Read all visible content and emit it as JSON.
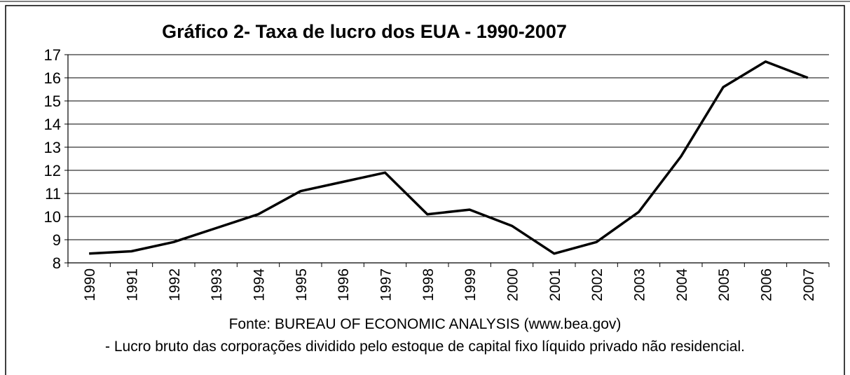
{
  "chart_data": {
    "type": "line",
    "title": "Gráfico 2- Taxa de lucro dos EUA - 1990-2007",
    "categories": [
      "1990",
      "1991",
      "1992",
      "1993",
      "1994",
      "1995",
      "1996",
      "1997",
      "1998",
      "1999",
      "2000",
      "2001",
      "2002",
      "2003",
      "2004",
      "2005",
      "2006",
      "2007"
    ],
    "series": [
      {
        "color": "#000000",
        "values": [
          8.4,
          8.5,
          8.9,
          9.5,
          10.1,
          11.1,
          11.5,
          11.9,
          10.1,
          10.3,
          9.6,
          8.4,
          8.9,
          10.2,
          12.6,
          15.6,
          16.7,
          16.0
        ]
      }
    ],
    "ylim": [
      8,
      17
    ],
    "yticks": [
      8,
      9,
      10,
      11,
      12,
      13,
      14,
      15,
      16,
      17
    ],
    "grid": true,
    "source": "Fonte: BUREAU OF ECONOMIC ANALYSIS (www.bea.gov)",
    "note": "- Lucro bruto das corporações dividido pelo estoque de capital fixo líquido privado não residencial."
  }
}
